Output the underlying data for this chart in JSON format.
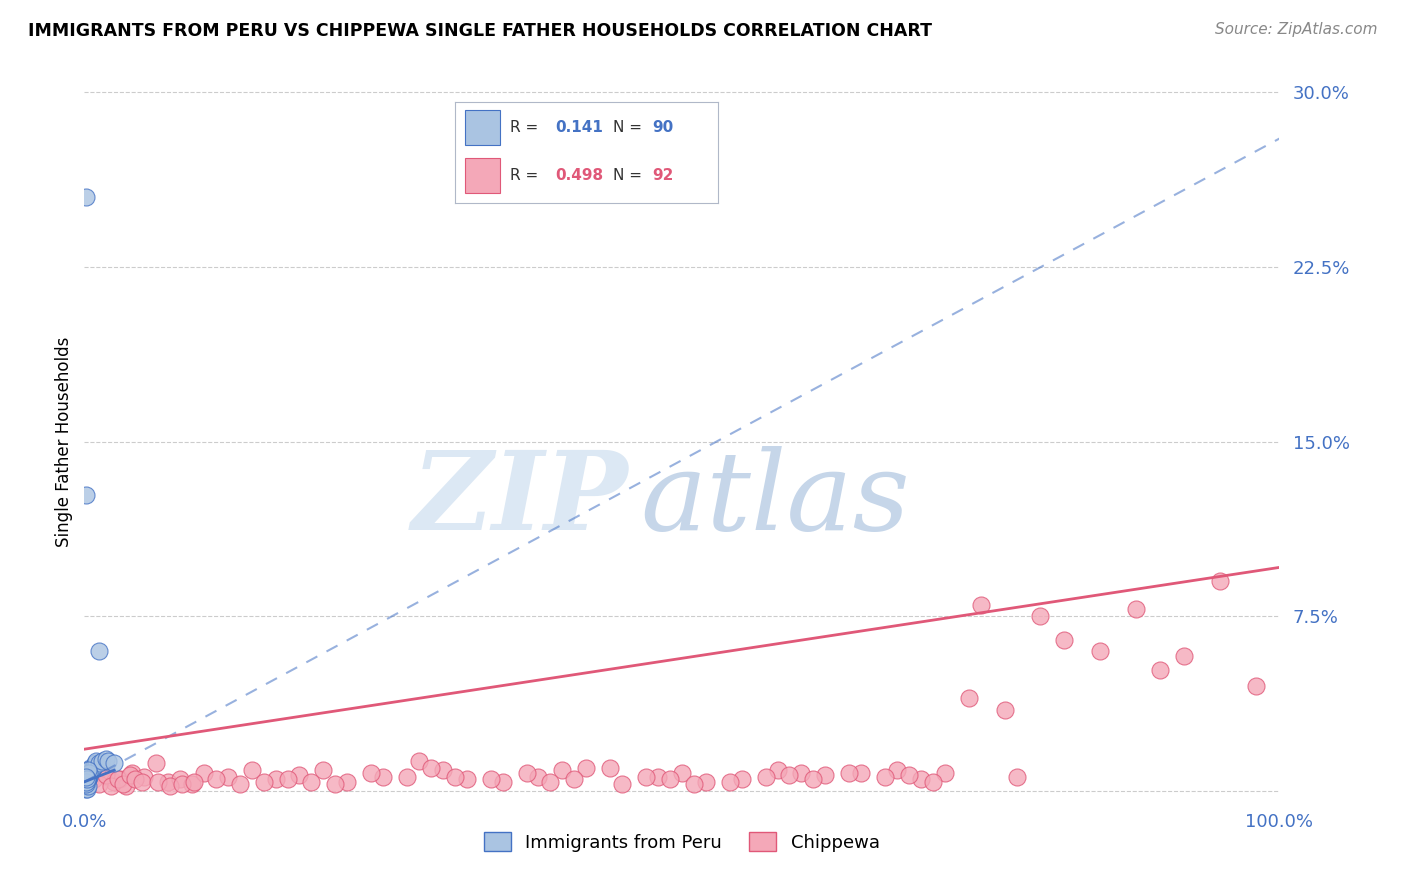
{
  "title": "IMMIGRANTS FROM PERU VS CHIPPEWA SINGLE FATHER HOUSEHOLDS CORRELATION CHART",
  "source": "Source: ZipAtlas.com",
  "ylabel": "Single Father Households",
  "xlabel": "",
  "legend_label1": "Immigrants from Peru",
  "legend_label2": "Chippewa",
  "r1": "0.141",
  "n1": "90",
  "r2": "0.498",
  "n2": "92",
  "color1": "#aac4e2",
  "color2": "#f4a8b8",
  "line_color1": "#4472c4",
  "line_color2": "#e05878",
  "xlim": [
    0,
    1.0
  ],
  "ylim": [
    -0.005,
    0.305
  ],
  "xticks": [
    0.0,
    0.25,
    0.5,
    0.75,
    1.0
  ],
  "xticklabels": [
    "0.0%",
    "",
    "",
    "",
    "100.0%"
  ],
  "ytick_positions": [
    0.0,
    0.075,
    0.15,
    0.225,
    0.3
  ],
  "ytick_labels_right": [
    "",
    "7.5%",
    "15.0%",
    "22.5%",
    "30.0%"
  ],
  "peru_blue_line_x": [
    0.0,
    0.025
  ],
  "peru_blue_line_y": [
    0.004,
    0.009
  ],
  "peru_dashed_line_x": [
    0.0,
    1.0
  ],
  "peru_dashed_line_y": [
    0.004,
    0.28
  ],
  "chippewa_line_x": [
    0.0,
    1.0
  ],
  "chippewa_line_y": [
    0.018,
    0.096
  ],
  "peru_scatter_x": [
    0.001,
    0.0015,
    0.0008,
    0.002,
    0.0012,
    0.001,
    0.0005,
    0.0018,
    0.002,
    0.0013,
    0.003,
    0.002,
    0.001,
    0.004,
    0.003,
    0.002,
    0.001,
    0.002,
    0.001,
    0.003,
    0.0015,
    0.001,
    0.001,
    0.002,
    0.001,
    0.003,
    0.002,
    0.001,
    0.001,
    0.001,
    0.0005,
    0.001,
    0.002,
    0.0025,
    0.001,
    0.002,
    0.001,
    0.0005,
    0.001,
    0.002,
    0.003,
    0.002,
    0.001,
    0.001,
    0.001,
    0.002,
    0.001,
    0.001,
    0.002,
    0.001,
    0.003,
    0.001,
    0.001,
    0.002,
    0.001,
    0.0005,
    0.001,
    0.001,
    0.001,
    0.002,
    0.004,
    0.005,
    0.005,
    0.006,
    0.007,
    0.008,
    0.009,
    0.01,
    0.012,
    0.012,
    0.015,
    0.018,
    0.02,
    0.025,
    0.001,
    0.002,
    0.003,
    0.001,
    0.002,
    0.003,
    0.004,
    0.003,
    0.001,
    0.001,
    0.002,
    0.001,
    0.001,
    0.001,
    0.002,
    0.001
  ],
  "peru_scatter_y": [
    0.002,
    0.003,
    0.005,
    0.005,
    0.004,
    0.003,
    0.002,
    0.006,
    0.007,
    0.006,
    0.008,
    0.005,
    0.005,
    0.006,
    0.005,
    0.004,
    0.003,
    0.006,
    0.007,
    0.008,
    0.005,
    0.004,
    0.003,
    0.006,
    0.005,
    0.007,
    0.006,
    0.005,
    0.003,
    0.004,
    0.005,
    0.006,
    0.007,
    0.008,
    0.004,
    0.005,
    0.006,
    0.003,
    0.004,
    0.005,
    0.006,
    0.007,
    0.003,
    0.004,
    0.005,
    0.006,
    0.004,
    0.005,
    0.006,
    0.003,
    0.007,
    0.004,
    0.003,
    0.005,
    0.004,
    0.003,
    0.005,
    0.006,
    0.004,
    0.007,
    0.008,
    0.009,
    0.01,
    0.009,
    0.01,
    0.011,
    0.012,
    0.013,
    0.06,
    0.012,
    0.013,
    0.014,
    0.013,
    0.012,
    0.005,
    0.006,
    0.007,
    0.001,
    0.001,
    0.002,
    0.008,
    0.009,
    0.255,
    0.127,
    0.005,
    0.004,
    0.003,
    0.004,
    0.005,
    0.006
  ],
  "chippewa_scatter_x": [
    0.005,
    0.01,
    0.015,
    0.02,
    0.025,
    0.03,
    0.035,
    0.04,
    0.05,
    0.06,
    0.07,
    0.08,
    0.09,
    0.1,
    0.12,
    0.14,
    0.16,
    0.18,
    0.2,
    0.22,
    0.25,
    0.28,
    0.3,
    0.32,
    0.35,
    0.38,
    0.4,
    0.42,
    0.45,
    0.48,
    0.5,
    0.52,
    0.55,
    0.58,
    0.6,
    0.62,
    0.65,
    0.68,
    0.7,
    0.72,
    0.75,
    0.78,
    0.8,
    0.82,
    0.85,
    0.88,
    0.9,
    0.92,
    0.95,
    0.98,
    0.003,
    0.008,
    0.012,
    0.018,
    0.022,
    0.028,
    0.032,
    0.038,
    0.042,
    0.048,
    0.062,
    0.072,
    0.082,
    0.092,
    0.11,
    0.13,
    0.15,
    0.17,
    0.19,
    0.21,
    0.24,
    0.27,
    0.29,
    0.31,
    0.34,
    0.37,
    0.39,
    0.41,
    0.44,
    0.47,
    0.49,
    0.51,
    0.54,
    0.57,
    0.59,
    0.61,
    0.64,
    0.67,
    0.69,
    0.71,
    0.74,
    0.77
  ],
  "chippewa_scatter_y": [
    0.005,
    0.008,
    0.01,
    0.006,
    0.004,
    0.005,
    0.002,
    0.008,
    0.006,
    0.012,
    0.004,
    0.005,
    0.003,
    0.008,
    0.006,
    0.009,
    0.005,
    0.007,
    0.009,
    0.004,
    0.006,
    0.013,
    0.009,
    0.005,
    0.004,
    0.006,
    0.009,
    0.01,
    0.003,
    0.006,
    0.008,
    0.004,
    0.005,
    0.009,
    0.008,
    0.007,
    0.008,
    0.009,
    0.005,
    0.008,
    0.08,
    0.006,
    0.075,
    0.065,
    0.06,
    0.078,
    0.052,
    0.058,
    0.09,
    0.045,
    0.003,
    0.005,
    0.003,
    0.007,
    0.002,
    0.005,
    0.003,
    0.007,
    0.005,
    0.004,
    0.004,
    0.002,
    0.003,
    0.004,
    0.005,
    0.003,
    0.004,
    0.005,
    0.004,
    0.003,
    0.008,
    0.006,
    0.01,
    0.006,
    0.005,
    0.008,
    0.004,
    0.005,
    0.01,
    0.006,
    0.005,
    0.003,
    0.004,
    0.006,
    0.007,
    0.005,
    0.008,
    0.006,
    0.007,
    0.004,
    0.04,
    0.035
  ]
}
